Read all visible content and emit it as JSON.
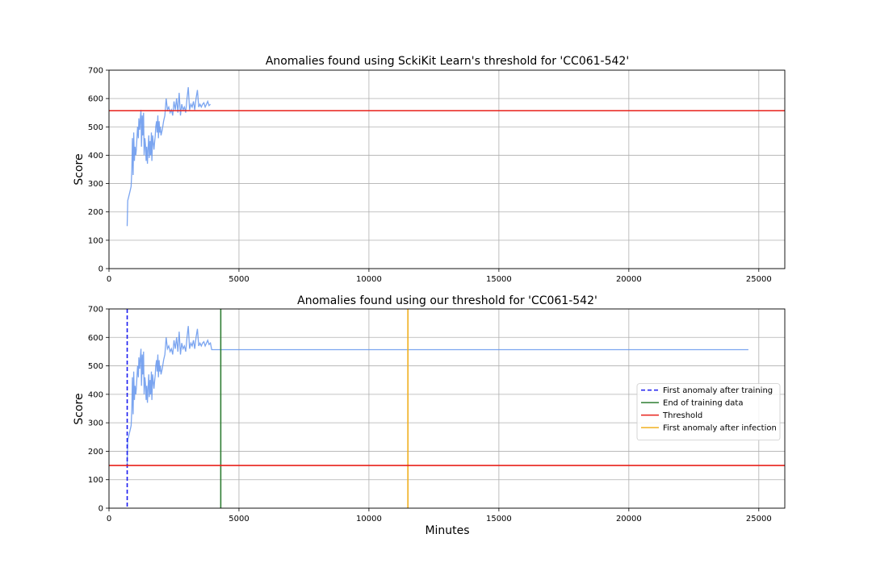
{
  "figure": {
    "background": "#ffffff"
  },
  "chart_data": [
    {
      "type": "line",
      "title": "Anomalies found using SckiKit Learn's threshold for 'CC061-542'",
      "xlabel": "",
      "ylabel": "Score",
      "xlim": [
        0,
        26000
      ],
      "ylim": [
        0,
        700
      ],
      "xticks": [
        0,
        5000,
        10000,
        15000,
        20000,
        25000
      ],
      "yticks": [
        0,
        100,
        200,
        300,
        400,
        500,
        600,
        700
      ],
      "grid": true,
      "series": [
        {
          "color": "#6495ed",
          "x": [
            700,
            720,
            750,
            800,
            850,
            880,
            900,
            930,
            950,
            980,
            1000,
            1030,
            1050,
            1080,
            1100,
            1130,
            1150,
            1180,
            1200,
            1230,
            1250,
            1280,
            1300,
            1330,
            1350,
            1380,
            1400,
            1430,
            1450,
            1480,
            1500,
            1530,
            1550,
            1580,
            1600,
            1630,
            1650,
            1680,
            1700,
            1730,
            1750,
            1780,
            1800,
            1830,
            1850,
            1880,
            1900,
            1930,
            1950,
            1980,
            2000,
            2050,
            2100,
            2150,
            2200,
            2250,
            2300,
            2350,
            2400,
            2450,
            2500,
            2550,
            2600,
            2650,
            2700,
            2750,
            2800,
            2850,
            2900,
            2950,
            3000,
            3050,
            3100,
            3150,
            3200,
            3250,
            3300,
            3350,
            3400,
            3450,
            3500,
            3550,
            3600,
            3650,
            3700,
            3750,
            3800,
            3850,
            3900
          ],
          "y": [
            150,
            240,
            250,
            270,
            290,
            350,
            460,
            330,
            480,
            380,
            430,
            400,
            420,
            470,
            500,
            460,
            530,
            490,
            520,
            560,
            430,
            540,
            470,
            550,
            400,
            460,
            440,
            380,
            430,
            370,
            420,
            470,
            390,
            450,
            400,
            480,
            380,
            470,
            450,
            420,
            440,
            470,
            500,
            520,
            480,
            540,
            460,
            520,
            480,
            500,
            470,
            490,
            520,
            540,
            600,
            560,
            570,
            550,
            560,
            540,
            590,
            560,
            600,
            550,
            620,
            540,
            580,
            560,
            570,
            550,
            600,
            640,
            560,
            580,
            570,
            590,
            560,
            600,
            630,
            570,
            580,
            570,
            580,
            585,
            570,
            580,
            590,
            575,
            580
          ]
        }
      ],
      "hlines": [
        {
          "y": 557,
          "color": "#e8201a",
          "style": "solid"
        }
      ],
      "vlines": []
    },
    {
      "type": "line",
      "title": "Anomalies found using our threshold for 'CC061-542'",
      "xlabel": "Minutes",
      "ylabel": "Score",
      "xlim": [
        0,
        26000
      ],
      "ylim": [
        0,
        700
      ],
      "xticks": [
        0,
        5000,
        10000,
        15000,
        20000,
        25000
      ],
      "yticks": [
        0,
        100,
        200,
        300,
        400,
        500,
        600,
        700
      ],
      "grid": true,
      "series": [
        {
          "color": "#6495ed",
          "x": [
            700,
            720,
            750,
            800,
            850,
            880,
            900,
            930,
            950,
            980,
            1000,
            1030,
            1050,
            1080,
            1100,
            1130,
            1150,
            1180,
            1200,
            1230,
            1250,
            1280,
            1300,
            1330,
            1350,
            1380,
            1400,
            1430,
            1450,
            1480,
            1500,
            1530,
            1550,
            1580,
            1600,
            1630,
            1650,
            1680,
            1700,
            1730,
            1750,
            1780,
            1800,
            1830,
            1850,
            1880,
            1900,
            1930,
            1950,
            1980,
            2000,
            2050,
            2100,
            2150,
            2200,
            2250,
            2300,
            2350,
            2400,
            2450,
            2500,
            2550,
            2600,
            2650,
            2700,
            2750,
            2800,
            2850,
            2900,
            2950,
            3000,
            3050,
            3100,
            3150,
            3200,
            3250,
            3300,
            3350,
            3400,
            3450,
            3500,
            3550,
            3600,
            3650,
            3700,
            3750,
            3800,
            3850,
            3900,
            3950,
            4000,
            24600
          ],
          "y": [
            150,
            240,
            250,
            270,
            290,
            350,
            460,
            330,
            480,
            380,
            430,
            400,
            420,
            470,
            500,
            460,
            530,
            490,
            520,
            560,
            430,
            540,
            470,
            550,
            400,
            460,
            440,
            380,
            430,
            370,
            420,
            470,
            390,
            450,
            400,
            480,
            380,
            470,
            450,
            420,
            440,
            470,
            500,
            520,
            480,
            540,
            460,
            520,
            480,
            500,
            470,
            490,
            520,
            540,
            600,
            560,
            570,
            550,
            560,
            540,
            590,
            560,
            600,
            550,
            620,
            540,
            580,
            560,
            570,
            550,
            600,
            640,
            560,
            580,
            570,
            590,
            560,
            600,
            630,
            570,
            580,
            570,
            580,
            585,
            570,
            580,
            590,
            575,
            580,
            557,
            557,
            557
          ]
        }
      ],
      "hlines": [
        {
          "y": 150,
          "color": "#e8201a",
          "style": "solid"
        }
      ],
      "vlines": [
        {
          "x": 700,
          "color": "#1c1cf0",
          "style": "dashed"
        },
        {
          "x": 4300,
          "color": "#2e7d32",
          "style": "solid"
        },
        {
          "x": 11500,
          "color": "#f0b020",
          "style": "solid"
        }
      ],
      "legend": {
        "position": "center-right",
        "entries": [
          {
            "label": "First anomaly after training",
            "color": "#1c1cf0",
            "style": "dashed"
          },
          {
            "label": "End of training data",
            "color": "#2e7d32",
            "style": "solid"
          },
          {
            "label": "Threshold",
            "color": "#e8201a",
            "style": "solid"
          },
          {
            "label": "First anomaly after infection",
            "color": "#f0b020",
            "style": "solid"
          }
        ]
      }
    }
  ]
}
